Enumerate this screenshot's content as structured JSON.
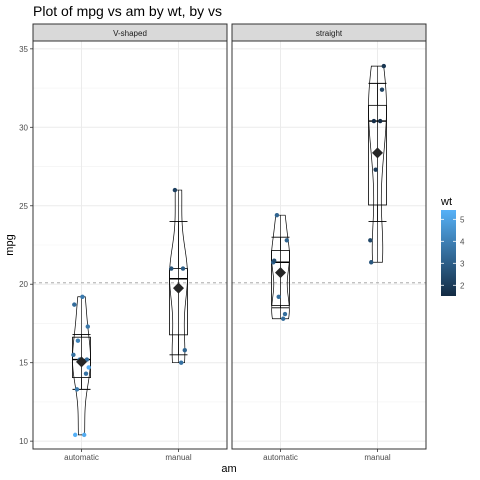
{
  "chart_data": {
    "type": "scatter",
    "title": "Plot of mpg vs am by wt, by vs",
    "xlabel": "am",
    "ylabel": "mpg",
    "categories": [
      "automatic",
      "manual"
    ],
    "ylim": [
      9.5,
      35.5
    ],
    "yticks": [
      10,
      15,
      20,
      25,
      30,
      35
    ],
    "reference_line": 20.09,
    "grid": true,
    "legend": {
      "title": "wt",
      "position": "right",
      "range": [
        1.513,
        5.424
      ],
      "ticks": [
        2,
        3,
        4,
        5
      ],
      "color_low": "#132B43",
      "color_high": "#56B1F7"
    },
    "panels": [
      {
        "strip": "V-shaped",
        "groups": [
          {
            "category": "automatic",
            "box": {
              "lower_whisker": 13.3,
              "q1": 14.05,
              "median": 15.2,
              "q3": 16.625,
              "upper_whisker": 19.2
            },
            "mean": 15.05,
            "errorbar": [
              13.3,
              16.8
            ],
            "violin": {
              "min": 10.4,
              "max": 19.2
            },
            "points": [
              {
                "y": 18.7,
                "wt": 3.44
              },
              {
                "y": 14.3,
                "wt": 3.57
              },
              {
                "y": 16.4,
                "wt": 4.07
              },
              {
                "y": 17.3,
                "wt": 3.73
              },
              {
                "y": 15.2,
                "wt": 3.78
              },
              {
                "y": 10.4,
                "wt": 5.25
              },
              {
                "y": 10.4,
                "wt": 5.42
              },
              {
                "y": 14.7,
                "wt": 5.35
              },
              {
                "y": 15.5,
                "wt": 3.52
              },
              {
                "y": 15.2,
                "wt": 3.44
              },
              {
                "y": 13.3,
                "wt": 3.84
              },
              {
                "y": 19.2,
                "wt": 3.85
              }
            ]
          },
          {
            "category": "manual",
            "box": {
              "lower_whisker": 15.0,
              "q1": 16.775,
              "median": 20.35,
              "q3": 21.0,
              "upper_whisker": 26.0
            },
            "mean": 19.75,
            "errorbar": [
              15.5,
              24.0
            ],
            "violin": {
              "min": 15.0,
              "max": 26.0
            },
            "points": [
              {
                "y": 21.0,
                "wt": 2.62
              },
              {
                "y": 21.0,
                "wt": 2.875
              },
              {
                "y": 26.0,
                "wt": 2.14
              },
              {
                "y": 15.8,
                "wt": 3.17
              },
              {
                "y": 19.7,
                "wt": 2.77
              },
              {
                "y": 15.0,
                "wt": 3.57
              }
            ]
          }
        ]
      },
      {
        "strip": "straight",
        "groups": [
          {
            "category": "automatic",
            "box": {
              "lower_whisker": 17.8,
              "q1": 18.65,
              "median": 21.4,
              "q3": 22.15,
              "upper_whisker": 24.4
            },
            "mean": 20.74,
            "errorbar": [
              18.5,
              23.0
            ],
            "violin": {
              "min": 17.8,
              "max": 24.4
            },
            "points": [
              {
                "y": 21.4,
                "wt": 3.215
              },
              {
                "y": 18.1,
                "wt": 3.46
              },
              {
                "y": 24.4,
                "wt": 3.19
              },
              {
                "y": 22.8,
                "wt": 3.15
              },
              {
                "y": 19.2,
                "wt": 3.44
              },
              {
                "y": 17.8,
                "wt": 3.44
              },
              {
                "y": 21.5,
                "wt": 2.465
              }
            ]
          },
          {
            "category": "manual",
            "box": {
              "lower_whisker": 21.4,
              "q1": 25.05,
              "median": 30.4,
              "q3": 31.4,
              "upper_whisker": 33.9
            },
            "mean": 28.37,
            "errorbar": [
              24.0,
              32.8
            ],
            "violin": {
              "min": 21.4,
              "max": 33.9
            },
            "points": [
              {
                "y": 22.8,
                "wt": 2.32
              },
              {
                "y": 32.4,
                "wt": 2.2
              },
              {
                "y": 30.4,
                "wt": 1.615
              },
              {
                "y": 33.9,
                "wt": 1.835
              },
              {
                "y": 27.3,
                "wt": 1.935
              },
              {
                "y": 30.4,
                "wt": 1.513
              },
              {
                "y": 21.4,
                "wt": 2.78
              }
            ]
          }
        ]
      }
    ]
  }
}
